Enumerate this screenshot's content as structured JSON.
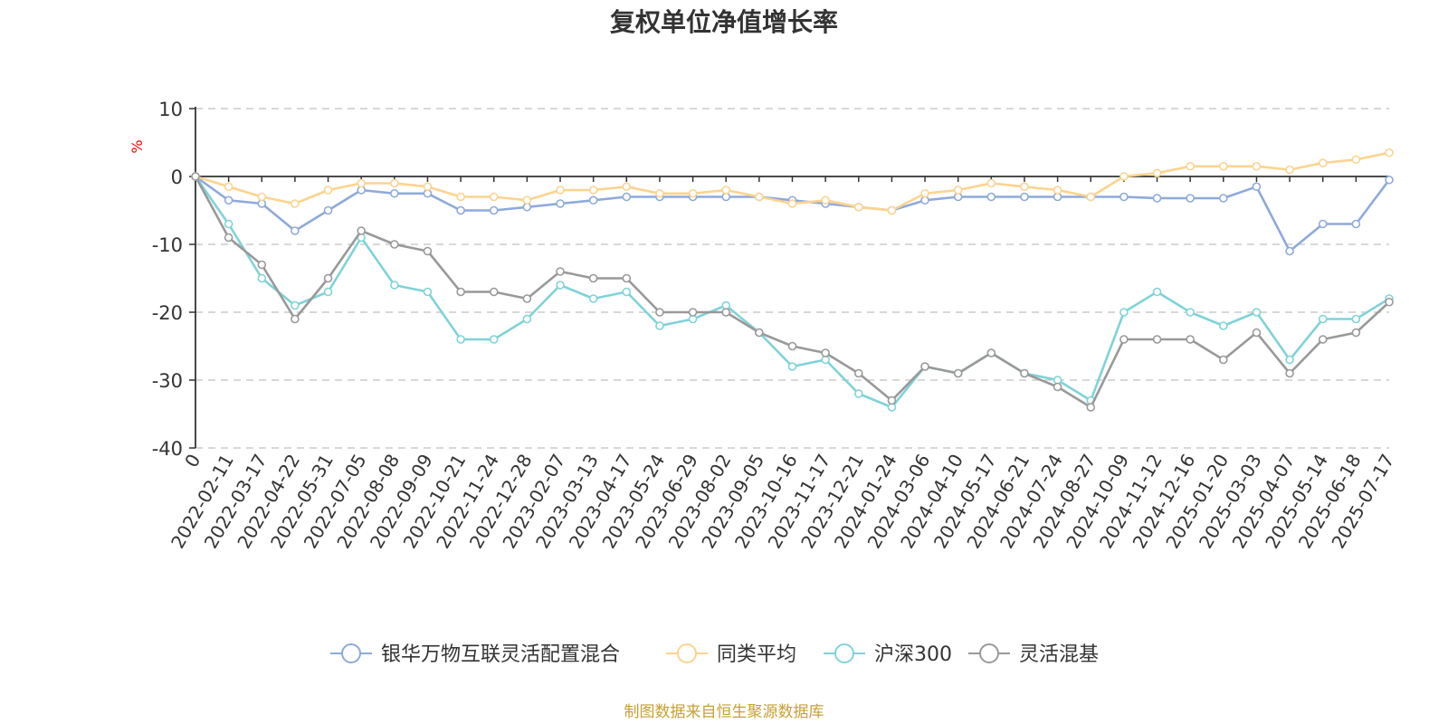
{
  "chart_data": {
    "type": "line",
    "title": "复权单位净值增长率",
    "y_unit": "%",
    "source": "制图数据来自恒生聚源数据库",
    "ylim": [
      -40,
      10
    ],
    "y_ticks": [
      10,
      0,
      -10,
      -20,
      -30,
      -40
    ],
    "x_ticks": [
      "0",
      "2022-02-11",
      "2022-03-17",
      "2022-04-22",
      "2022-05-31",
      "2022-07-05",
      "2022-08-08",
      "2022-09-09",
      "2022-10-21",
      "2022-11-24",
      "2022-12-28",
      "2023-02-07",
      "2023-03-13",
      "2023-04-17",
      "2023-05-24",
      "2023-06-29",
      "2023-08-02",
      "2023-09-05",
      "2023-10-16",
      "2023-11-17",
      "2023-12-21",
      "2024-01-24",
      "2024-03-06",
      "2024-04-10",
      "2024-05-17",
      "2024-06-21",
      "2024-07-24",
      "2024-08-27",
      "2024-10-09",
      "2024-11-12",
      "2024-12-16",
      "2025-01-20",
      "2025-03-03",
      "2025-04-07",
      "2025-05-14",
      "2025-06-18",
      "2025-07-17"
    ],
    "grid": "horizontal dashed",
    "legend_position": "bottom",
    "series": [
      {
        "name": "银华万物互联灵活配置混合",
        "color": "#8eaadb",
        "values": [
          0,
          -3.5,
          -4,
          -8,
          -5,
          -2,
          -2.5,
          -2.5,
          -5,
          -5,
          -4.5,
          -4,
          -3.5,
          -3,
          -3,
          -3,
          -3,
          -3,
          -3.5,
          -4,
          -4.5,
          -5,
          -3.5,
          -3,
          -3,
          -3,
          -3,
          -3,
          -3,
          -3.2,
          -3.2,
          -3.2,
          -1.5,
          -11,
          -7,
          -7,
          -0.5
        ]
      },
      {
        "name": "同类平均",
        "color": "#fcd38f",
        "values": [
          0,
          -1.5,
          -3,
          -4,
          -2,
          -1,
          -1,
          -1.5,
          -3,
          -3,
          -3.5,
          -2,
          -2,
          -1.5,
          -2.5,
          -2.5,
          -2,
          -3,
          -4,
          -3.5,
          -4.5,
          -5,
          -2.5,
          -2,
          -1,
          -1.5,
          -2,
          -3,
          0,
          0.5,
          1.5,
          1.5,
          1.5,
          1,
          2,
          2.5,
          3.5
        ]
      },
      {
        "name": "沪深300",
        "color": "#7fd3d8",
        "values": [
          0,
          -7,
          -15,
          -19,
          -17,
          -9,
          -16,
          -17,
          -24,
          -24,
          -21,
          -16,
          -18,
          -17,
          -22,
          -21,
          -19,
          -23,
          -28,
          -27,
          -32,
          -34,
          -28,
          -29,
          -26,
          -29,
          -30,
          -33,
          -20,
          -17,
          -20,
          -22,
          -20,
          -27,
          -21,
          -21,
          -18
        ]
      },
      {
        "name": "灵活混基",
        "color": "#999999",
        "values": [
          0,
          -9,
          -13,
          -21,
          -15,
          -8,
          -10,
          -11,
          -17,
          -17,
          -18,
          -14,
          -15,
          -15,
          -20,
          -20,
          -20,
          -23,
          -25,
          -26,
          -29,
          -33,
          -28,
          -29,
          -26,
          -29,
          -31,
          -34,
          -24,
          -24,
          -24,
          -27,
          -23,
          -29,
          -24,
          -23,
          -18.5
        ]
      }
    ]
  }
}
